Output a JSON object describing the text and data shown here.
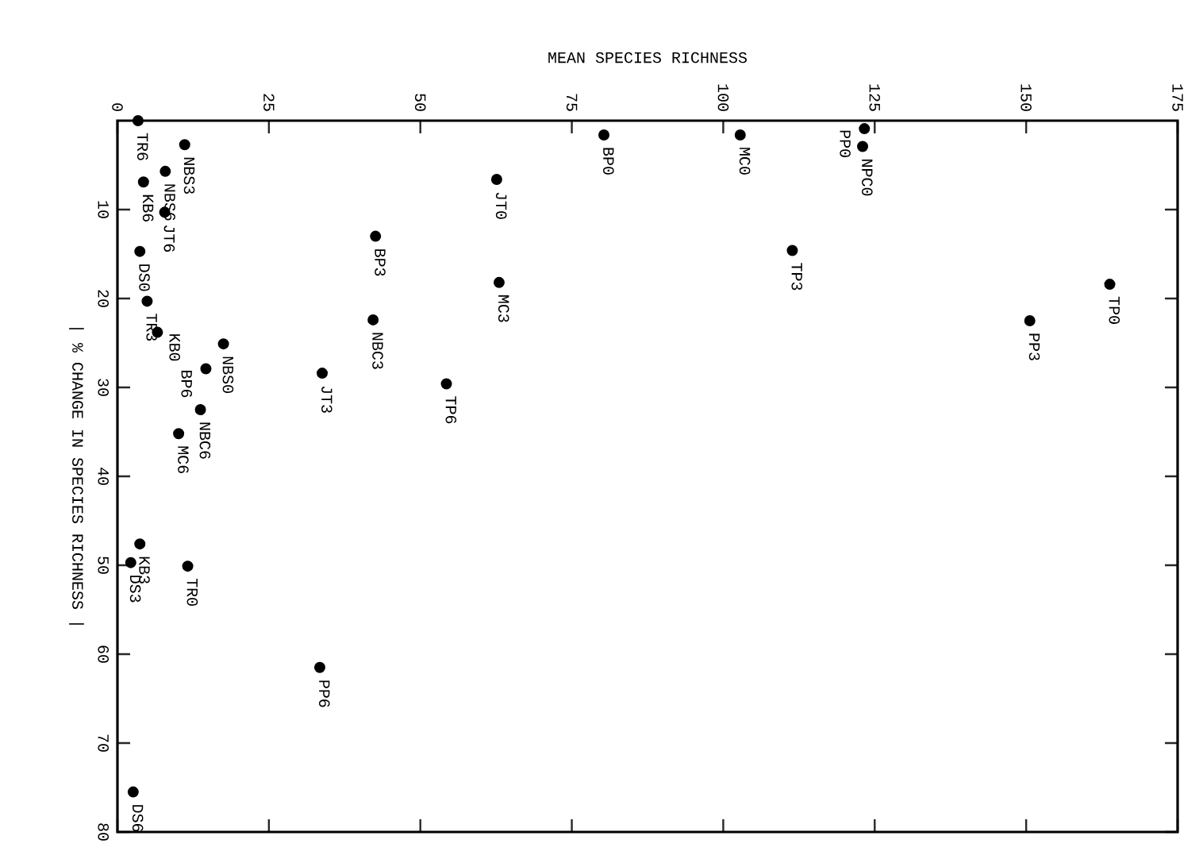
{
  "chart_data": {
    "type": "scatter",
    "xlabel": "MEAN SPECIES RICHNESS",
    "ylabel": "| % CHANGE IN SPECIES RICHNESS |",
    "x": [
      3.4,
      11.1,
      7.9,
      4.3,
      7.8,
      3.7,
      4.9,
      6.6,
      17.5,
      14.6,
      13.7,
      10.1,
      3.7,
      2.2,
      11.6,
      33.4,
      2.6,
      80.3,
      102.8,
      123.3,
      123.0,
      62.6,
      42.6,
      111.4,
      63.0,
      42.2,
      163.8,
      150.6,
      33.8,
      54.3
    ],
    "values": [
      0,
      2.7,
      5.7,
      6.9,
      10.3,
      14.7,
      20.3,
      23.8,
      25.1,
      27.9,
      32.5,
      35.2,
      47.6,
      49.7,
      50.1,
      61.5,
      75.5,
      1.6,
      1.6,
      0.9,
      2.9,
      6.6,
      13.0,
      14.6,
      18.2,
      22.4,
      18.4,
      22.5,
      28.4,
      29.6
    ],
    "color": "#000000",
    "marker": "circle",
    "xlim": [
      0,
      175
    ],
    "ylim": [
      80,
      0
    ],
    "xticks": [
      0,
      25,
      50,
      75,
      100,
      125,
      150,
      175
    ],
    "yticks": [
      10,
      20,
      30,
      40,
      50,
      60,
      70,
      80
    ],
    "grid": false,
    "annotations": [
      {
        "text": "TR6",
        "x": 3.4,
        "y": 0
      },
      {
        "text": "NBS3",
        "x": 11.1,
        "y": 2.7
      },
      {
        "text": "NBS6",
        "x": 7.9,
        "y": 5.7
      },
      {
        "text": "KB6",
        "x": 4.3,
        "y": 6.9
      },
      {
        "text": "JT6",
        "x": 7.8,
        "y": 10.3
      },
      {
        "text": "DS0",
        "x": 3.7,
        "y": 14.7
      },
      {
        "text": "TR3",
        "x": 4.9,
        "y": 20.3
      },
      {
        "text": "KB0",
        "x": 6.6,
        "y": 23.8
      },
      {
        "text": "NBS0",
        "x": 17.5,
        "y": 25.1
      },
      {
        "text": "BP6",
        "x": 14.6,
        "y": 27.9
      },
      {
        "text": "NBC6",
        "x": 13.7,
        "y": 32.5
      },
      {
        "text": "MC6",
        "x": 10.1,
        "y": 35.2
      },
      {
        "text": "KB3",
        "x": 3.7,
        "y": 47.6
      },
      {
        "text": "DS3",
        "x": 2.2,
        "y": 49.7
      },
      {
        "text": "TR0",
        "x": 11.6,
        "y": 50.1
      },
      {
        "text": "PP6",
        "x": 33.4,
        "y": 61.5
      },
      {
        "text": "DS6",
        "x": 2.6,
        "y": 75.5
      },
      {
        "text": "BP0",
        "x": 80.3,
        "y": 1.6
      },
      {
        "text": "MC0",
        "x": 102.8,
        "y": 1.6
      },
      {
        "text": "PP0",
        "x": 123.3,
        "y": 0.9
      },
      {
        "text": "NPC0",
        "x": 123.0,
        "y": 2.9
      },
      {
        "text": "JT0",
        "x": 62.6,
        "y": 6.6
      },
      {
        "text": "BP3",
        "x": 42.6,
        "y": 13.0
      },
      {
        "text": "TP3",
        "x": 111.4,
        "y": 14.6
      },
      {
        "text": "MC3",
        "x": 63.0,
        "y": 18.2
      },
      {
        "text": "NBC3",
        "x": 42.2,
        "y": 22.4
      },
      {
        "text": "TP0",
        "x": 163.8,
        "y": 18.4
      },
      {
        "text": "PP3",
        "x": 150.6,
        "y": 22.5
      },
      {
        "text": "JT3",
        "x": 33.8,
        "y": 28.4
      },
      {
        "text": "TP6",
        "x": 54.3,
        "y": 29.6
      }
    ]
  }
}
